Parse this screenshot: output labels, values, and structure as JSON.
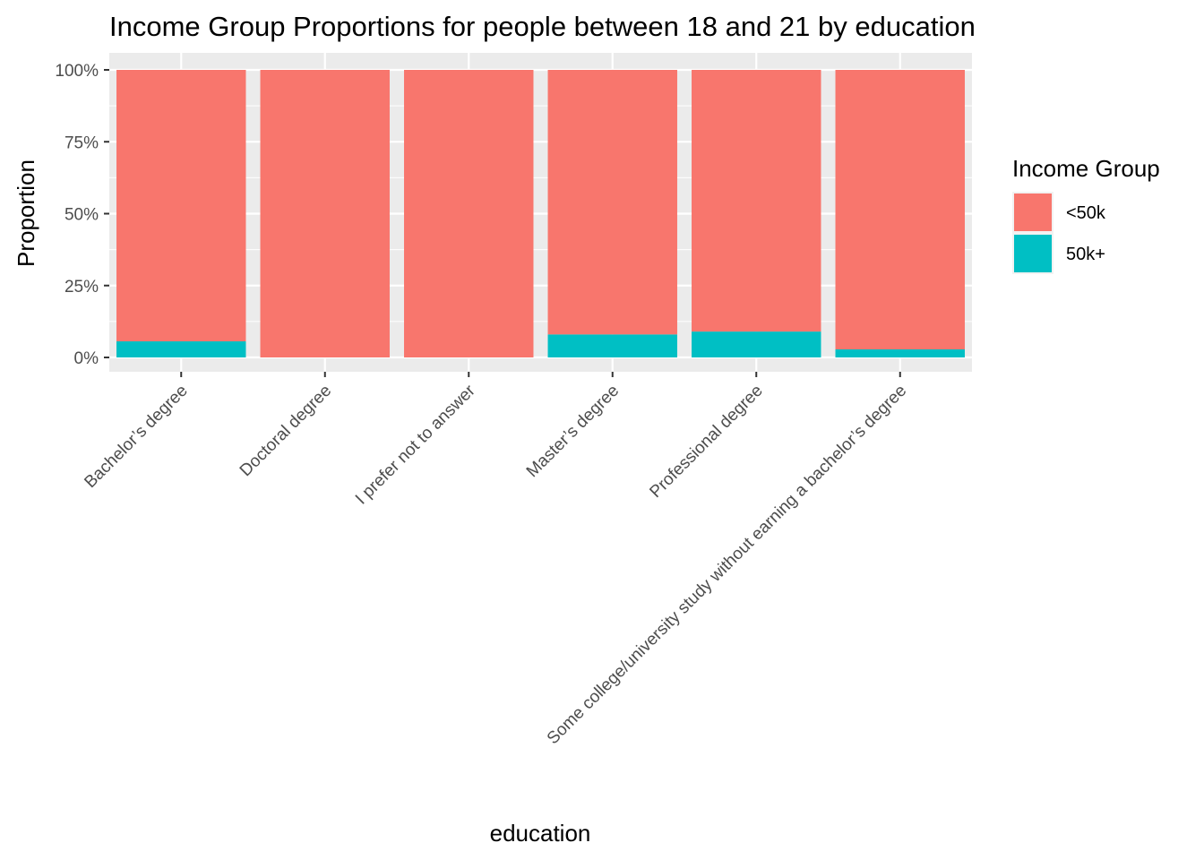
{
  "chart_data": {
    "type": "bar",
    "stacked": true,
    "title": "Income Group Proportions for people between 18 and 21 by education",
    "xlabel": "education",
    "ylabel": "Proportion",
    "ylim": [
      0,
      1
    ],
    "y_ticks": [
      0,
      0.25,
      0.5,
      0.75,
      1.0
    ],
    "y_tick_labels": [
      "0%",
      "25%",
      "50%",
      "75%",
      "100%"
    ],
    "categories": [
      "Bachelor’s degree",
      "Doctoral degree",
      "I prefer not to answer",
      "Master’s degree",
      "Professional degree",
      "Some college/university study without earning a bachelor’s degree"
    ],
    "series": [
      {
        "name": "<50k",
        "color": "#F8766D",
        "values": [
          0.944,
          1.0,
          1.0,
          0.92,
          0.91,
          0.972
        ]
      },
      {
        "name": "50k+",
        "color": "#00BFC4",
        "values": [
          0.056,
          0.0,
          0.0,
          0.08,
          0.09,
          0.028
        ]
      }
    ],
    "grid": true,
    "panel_background": "#EBEBEB",
    "legend": {
      "title": "Income Group",
      "placement": "right",
      "entries": [
        "<50k",
        "50k+"
      ]
    }
  }
}
